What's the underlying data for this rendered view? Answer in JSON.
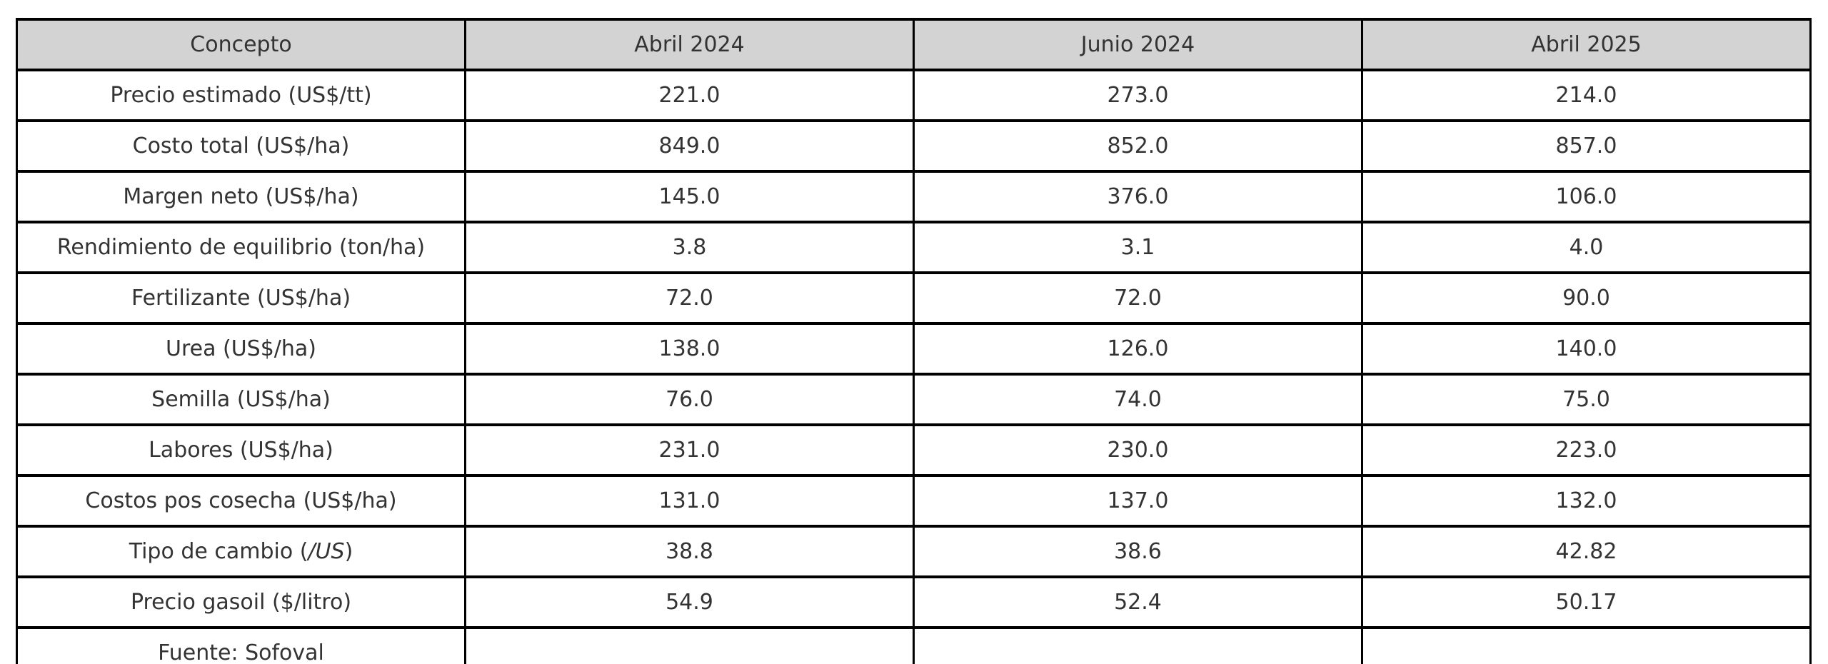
{
  "table": {
    "headers": [
      "Concepto",
      "Abril 2024",
      "Junio 2024",
      "Abril 2025"
    ],
    "rows": [
      {
        "concepto": "Precio estimado (US$/tt)",
        "values": [
          "221.0",
          "273.0",
          "214.0"
        ]
      },
      {
        "concepto": "Costo total (US$/ha)",
        "values": [
          "849.0",
          "852.0",
          "857.0"
        ]
      },
      {
        "concepto": "Margen neto (US$/ha)",
        "values": [
          "145.0",
          "376.0",
          "106.0"
        ]
      },
      {
        "concepto": "Rendimiento de equilibrio (ton/ha)",
        "values": [
          "3.8",
          "3.1",
          "4.0"
        ]
      },
      {
        "concepto": "Fertilizante (US$/ha)",
        "values": [
          "72.0",
          "72.0",
          "90.0"
        ]
      },
      {
        "concepto": "Urea (US$/ha)",
        "values": [
          "138.0",
          "126.0",
          "140.0"
        ]
      },
      {
        "concepto": "Semilla (US$/ha)",
        "values": [
          "76.0",
          "74.0",
          "75.0"
        ]
      },
      {
        "concepto": "Labores (US$/ha)",
        "values": [
          "231.0",
          "230.0",
          "223.0"
        ]
      },
      {
        "concepto": "Costos pos cosecha (US$/ha)",
        "values": [
          "131.0",
          "137.0",
          "132.0"
        ]
      },
      {
        "concepto": "Tipo de cambio (/US)",
        "concepto_parts": [
          {
            "text": "Tipo de cambio ("
          },
          {
            "text": "/US",
            "italic": true
          },
          {
            "text": ")"
          }
        ],
        "values": [
          "38.8",
          "38.6",
          "42.82"
        ]
      },
      {
        "concepto": "Precio gasoil ($/litro)",
        "values": [
          "54.9",
          "52.4",
          "50.17"
        ]
      },
      {
        "concepto": "Fuente: Sofoval",
        "values": [
          "",
          "",
          ""
        ]
      }
    ],
    "colors": {
      "header_bg": "#d3d3d3",
      "border": "#000000",
      "text": "#333333",
      "cell_bg": "#ffffff"
    }
  },
  "chart_data": {
    "type": "table",
    "title": "",
    "columns": [
      "Concepto",
      "Abril 2024",
      "Junio 2024",
      "Abril 2025"
    ],
    "rows": [
      [
        "Precio estimado (US$/tt)",
        221.0,
        273.0,
        214.0
      ],
      [
        "Costo total (US$/ha)",
        849.0,
        852.0,
        857.0
      ],
      [
        "Margen neto (US$/ha)",
        145.0,
        376.0,
        106.0
      ],
      [
        "Rendimiento de equilibrio (ton/ha)",
        3.8,
        3.1,
        4.0
      ],
      [
        "Fertilizante (US$/ha)",
        72.0,
        72.0,
        90.0
      ],
      [
        "Urea (US$/ha)",
        138.0,
        126.0,
        140.0
      ],
      [
        "Semilla (US$/ha)",
        76.0,
        74.0,
        75.0
      ],
      [
        "Labores (US$/ha)",
        231.0,
        230.0,
        223.0
      ],
      [
        "Costos pos cosecha (US$/ha)",
        131.0,
        137.0,
        132.0
      ],
      [
        "Tipo de cambio (/US)",
        38.8,
        38.6,
        42.82
      ],
      [
        "Precio gasoil ($/litro)",
        54.9,
        52.4,
        50.17
      ],
      [
        "Fuente: Sofoval",
        null,
        null,
        null
      ]
    ],
    "layout_hints": {
      "header_background": "#d3d3d3",
      "grid": true,
      "cell_text_align": "center"
    }
  }
}
